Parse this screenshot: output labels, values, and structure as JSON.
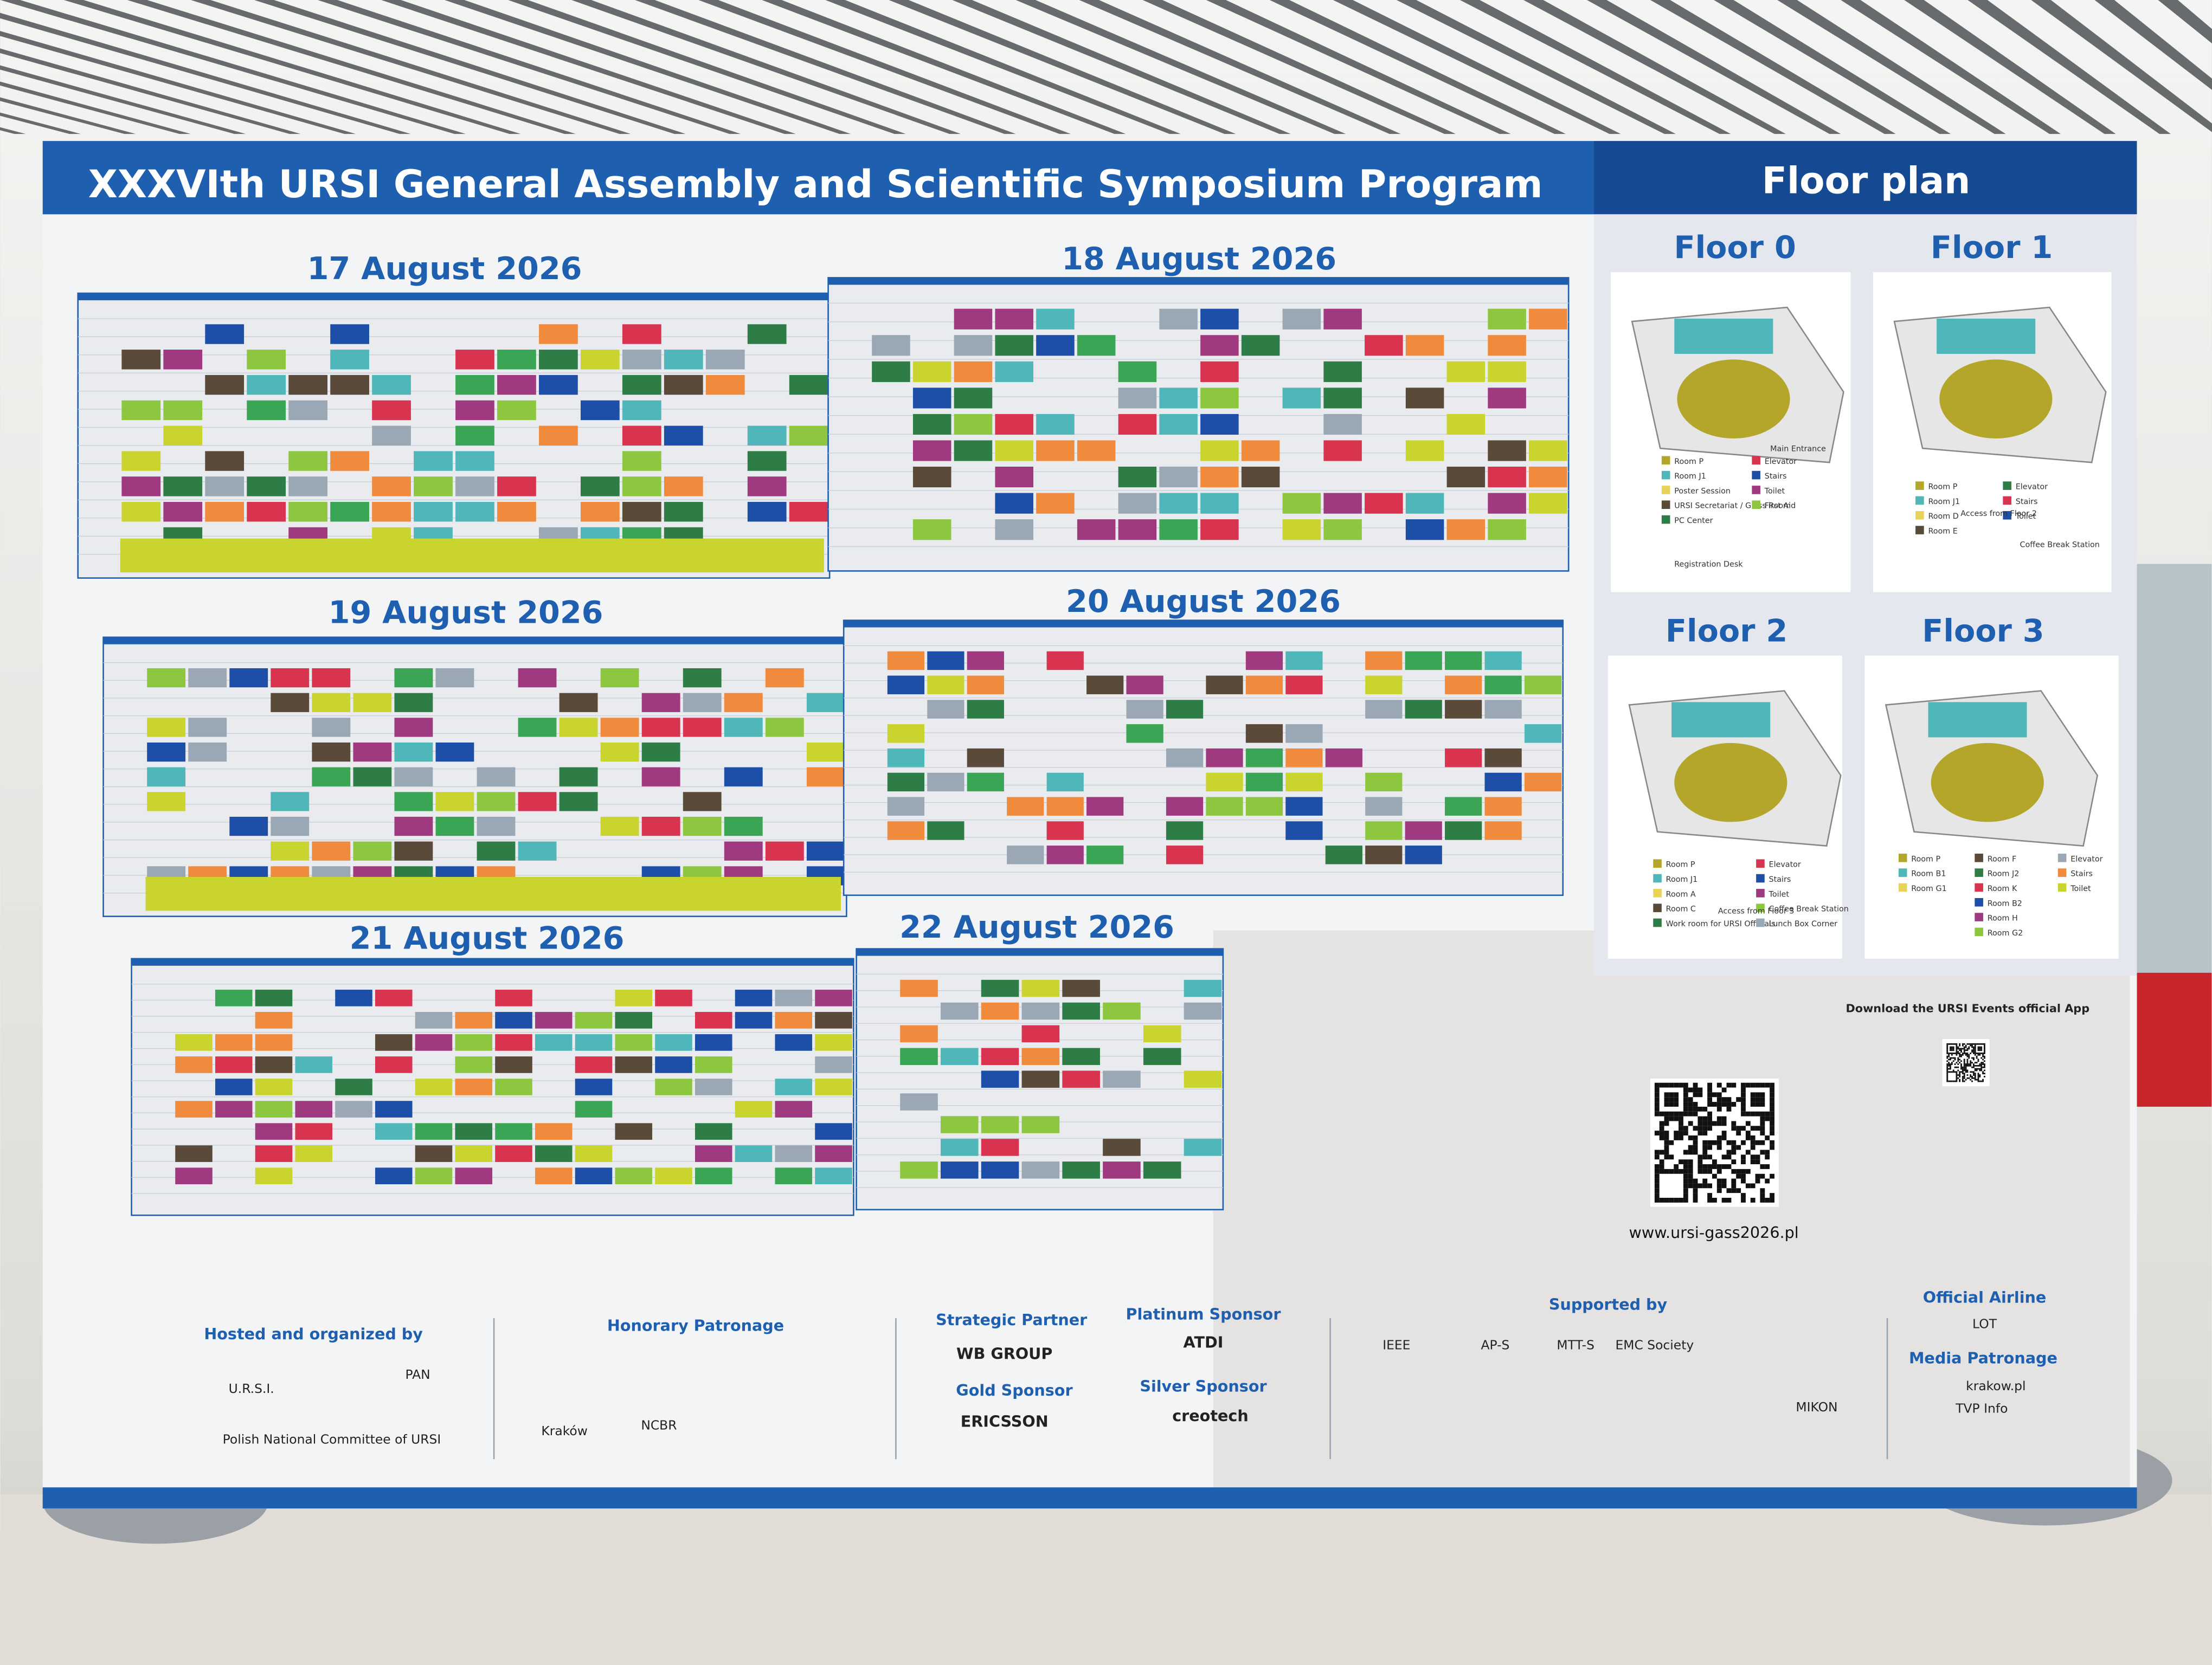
{
  "header": {
    "title": "XXXVIth URSI General Assembly and Scientific Symposium Program"
  },
  "schedule": {
    "days": [
      {
        "date": "17 August 2026"
      },
      {
        "date": "18 August 2026"
      },
      {
        "date": "19 August 2026"
      },
      {
        "date": "20 August 2026"
      },
      {
        "date": "21 August 2026"
      },
      {
        "date": "22 August 2026"
      }
    ]
  },
  "floor_plan": {
    "title": "Floor plan",
    "floors": [
      {
        "name": "Floor 0",
        "legend": [
          "Room P",
          "Room J1",
          "Poster Session",
          "URSI Secretariat / Glass Room",
          "PC Center",
          "Elevator",
          "Stairs",
          "Toilet",
          "First Aid"
        ],
        "notes": [
          "Registration Desk",
          "Main Entrance"
        ]
      },
      {
        "name": "Floor 1",
        "legend": [
          "Room P",
          "Room J1",
          "Room D",
          "Room E",
          "Elevator",
          "Stairs",
          "Toilet"
        ],
        "notes": [
          "Access from Floor 2",
          "Coffee Break Station"
        ]
      },
      {
        "name": "Floor 2",
        "legend": [
          "Room P",
          "Room J1",
          "Room A",
          "Room C",
          "Work room for URSI Officials",
          "Elevator",
          "Stairs",
          "Toilet",
          "Coffee Break Station",
          "Lunch Box Corner"
        ],
        "notes": [
          "Access from Floor 3"
        ]
      },
      {
        "name": "Floor 3",
        "legend": [
          "Room P",
          "Room B1",
          "Room G1",
          "Room F",
          "Room J2",
          "Room K",
          "Room B2",
          "Room H",
          "Room G2",
          "Elevator",
          "Stairs",
          "Toilet"
        ],
        "notes": []
      }
    ]
  },
  "app": {
    "heading": "Download the URSI Events official App",
    "url": "www.ursi-gass2026.pl"
  },
  "sponsors": [
    {
      "heading": "Hosted and organized by",
      "items": [
        "U.R.S.I.",
        "PAN",
        "Polish National Committee of URSI"
      ]
    },
    {
      "heading": "Honorary Patronage",
      "items": [
        "Kraków",
        "NCBR"
      ]
    },
    {
      "heading": "Strategic Partner",
      "items": [
        "WB GROUP"
      ]
    },
    {
      "heading": "Platinum Sponsor",
      "items": [
        "ATDI"
      ]
    },
    {
      "heading": "Gold Sponsor",
      "items": [
        "ERICSSON"
      ]
    },
    {
      "heading": "Silver Sponsor",
      "items": [
        "creotech"
      ]
    },
    {
      "heading": "Supported by",
      "items": [
        "IEEE",
        "AP-S",
        "MTT-S",
        "EMC Society",
        "MIKON"
      ]
    },
    {
      "heading": "Official Airline",
      "items": [
        "LOT"
      ]
    },
    {
      "heading": "Media Patronage",
      "items": [
        "krakow.pl",
        "TVP Info"
      ]
    }
  ]
}
